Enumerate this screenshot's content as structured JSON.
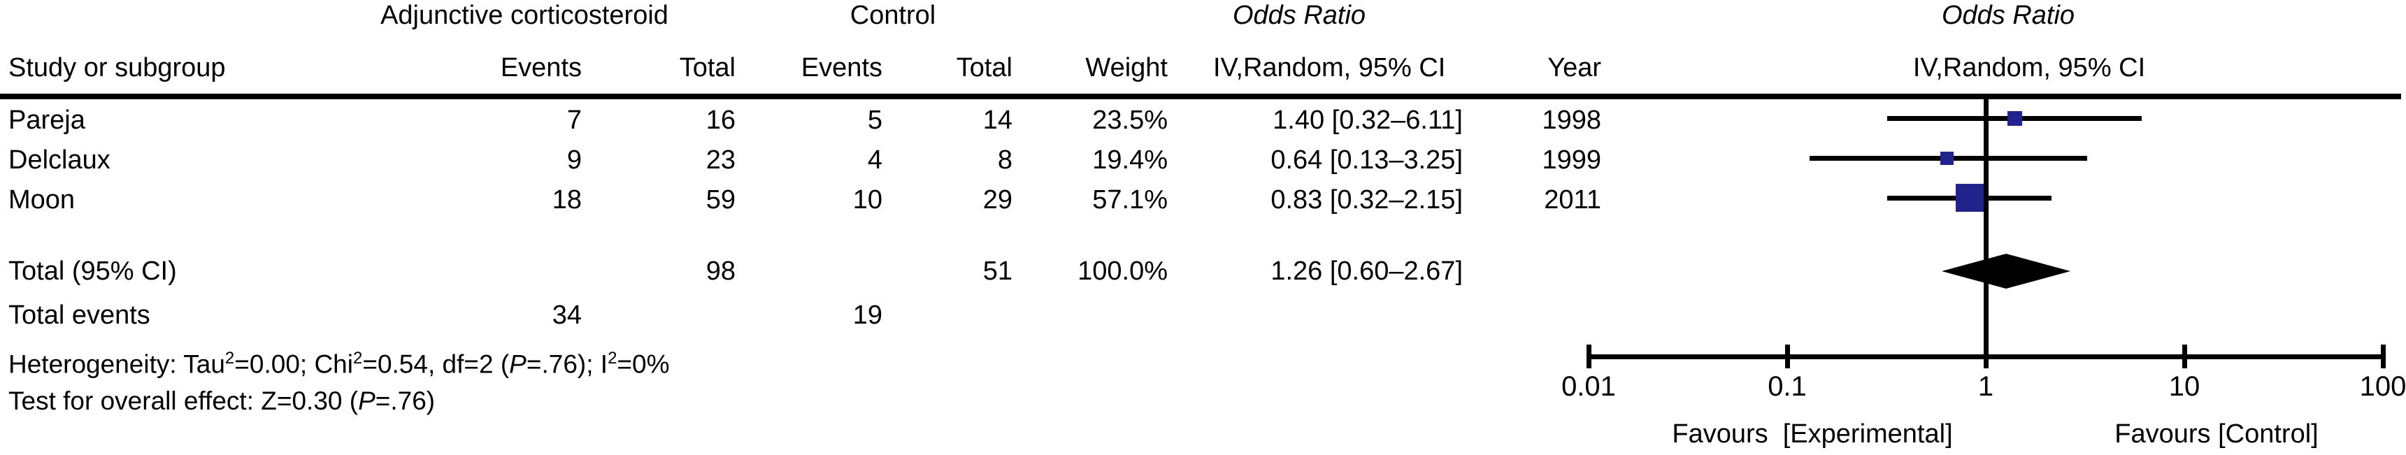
{
  "figure": {
    "group_headers": {
      "treatment": "Adjunctive corticosteroid",
      "control": "Control",
      "odds_ratio_left": "Odds Ratio",
      "odds_ratio_right": "Odds Ratio"
    },
    "column_headers": {
      "study": "Study or subgroup",
      "events_treatment": "Events",
      "total_treatment": "Total",
      "events_control": "Events",
      "total_control": "Total",
      "weight": "Weight",
      "iv_random_left": "IV,Random, 95% CI",
      "year": "Year",
      "iv_random_right": "IV,Random, 95% CI"
    },
    "rows": [
      {
        "study": "Pareja",
        "events_t": "7",
        "total_t": "16",
        "events_c": "5",
        "total_c": "14",
        "weight": "23.5%",
        "or_ci": "1.40 [0.32–6.11]",
        "year": "1998"
      },
      {
        "study": "Delclaux",
        "events_t": "9",
        "total_t": "23",
        "events_c": "4",
        "total_c": "8",
        "weight": "19.4%",
        "or_ci": "0.64 [0.13–3.25]",
        "year": "1999"
      },
      {
        "study": "Moon",
        "events_t": "18",
        "total_t": "59",
        "events_c": "10",
        "total_c": "29",
        "weight": "57.1%",
        "or_ci": "0.83 [0.32–2.15]",
        "year": "2011"
      }
    ],
    "total_row": {
      "label": "Total (95% CI)",
      "total_t": "98",
      "total_c": "51",
      "weight": "100.0%",
      "or_ci": "1.26 [0.60–2.67]"
    },
    "total_events_row": {
      "label": "Total events",
      "events_t": "34",
      "events_c": "19"
    },
    "heterogeneity": {
      "t1": "Heterogeneity: Tau",
      "s1": "2",
      "t2": "=0.00; Chi",
      "s2": "2",
      "t3": "=0.54, df=2 (",
      "p": "P",
      "t4": "=.76); I",
      "s3": "2",
      "t5": "=0%"
    },
    "overall_effect": {
      "t1": "Test for overall effect: Z=0.30 (",
      "p": "P",
      "t2": "=.76)"
    }
  },
  "chart_data": {
    "type": "forest",
    "effect_measure": "Odds Ratio IV,Random, 95% CI",
    "x_scale": "log10",
    "x_ticks": [
      0.01,
      0.1,
      1,
      10,
      100
    ],
    "x_tick_labels": [
      "0.01",
      "0.1",
      "1",
      "10",
      "100"
    ],
    "studies": [
      {
        "name": "Pareja",
        "or": 1.4,
        "ci_low": 0.32,
        "ci_high": 6.11,
        "weight_pct": 23.5,
        "year": 1998
      },
      {
        "name": "Delclaux",
        "or": 0.64,
        "ci_low": 0.13,
        "ci_high": 3.25,
        "weight_pct": 19.4,
        "year": 1999
      },
      {
        "name": "Moon",
        "or": 0.83,
        "ci_low": 0.32,
        "ci_high": 2.15,
        "weight_pct": 57.1,
        "year": 2011
      }
    ],
    "pooled": {
      "or": 1.26,
      "ci_low": 0.6,
      "ci_high": 2.67,
      "weight_pct": 100.0
    },
    "axis_label_left": "Favours  [Experimental]",
    "axis_label_right": "Favours [Control]",
    "marker_color": "#22228C",
    "diamond_color": "#000000",
    "line_color": "#000000"
  }
}
